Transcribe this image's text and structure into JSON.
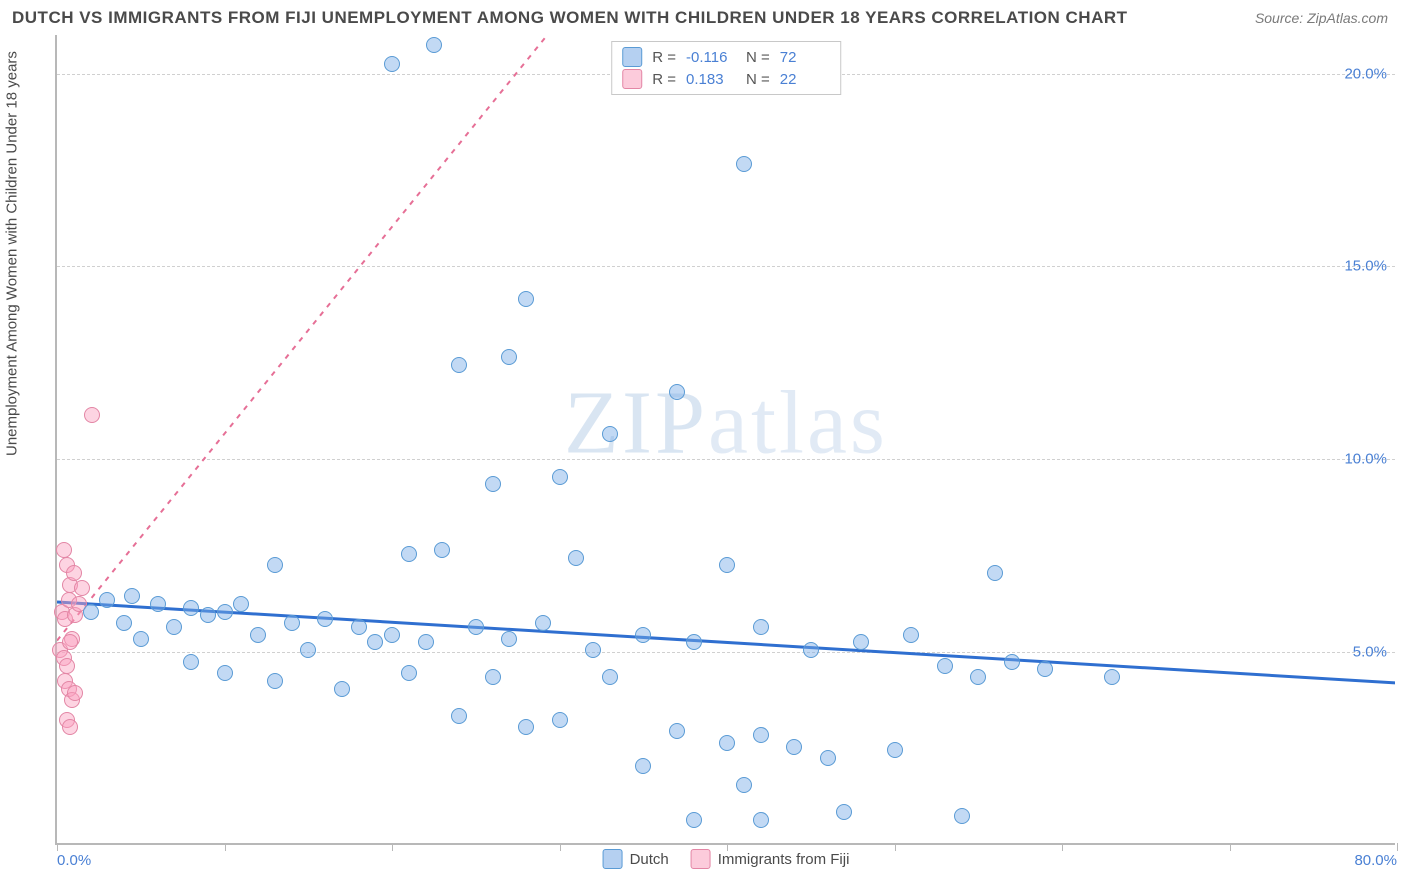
{
  "title": "DUTCH VS IMMIGRANTS FROM FIJI UNEMPLOYMENT AMONG WOMEN WITH CHILDREN UNDER 18 YEARS CORRELATION CHART",
  "source": "Source: ZipAtlas.com",
  "ylabel": "Unemployment Among Women with Children Under 18 years",
  "watermark_a": "ZIP",
  "watermark_b": "atlas",
  "chart": {
    "type": "scatter",
    "xmin": 0,
    "xmax": 80,
    "ymin": 0,
    "ymax": 21,
    "x_ticks": [
      0,
      10,
      20,
      30,
      40,
      50,
      60,
      70,
      80
    ],
    "x_tick_labels": {
      "0": "0.0%",
      "80": "80.0%"
    },
    "y_gridlines": [
      5,
      10,
      15,
      20
    ],
    "y_tick_labels": {
      "5": "5.0%",
      "10": "10.0%",
      "15": "15.0%",
      "20": "20.0%"
    },
    "background_color": "#ffffff",
    "grid_color": "#d0d0d0",
    "axis_color": "#b8b8b8",
    "tick_label_color": "#4a80d4",
    "label_fontsize": 15,
    "title_fontsize": 17,
    "marker_radius": 8
  },
  "series": {
    "dutch": {
      "label": "Dutch",
      "fill": "rgba(120,170,230,0.45)",
      "stroke": "#5a9bd5",
      "trend_color": "#2f6fd0",
      "trend_width": 3,
      "trend_dash": "none",
      "r_label": "-0.116",
      "n_label": "72",
      "trend": {
        "x1": 0,
        "y1": 6.3,
        "x2": 80,
        "y2": 4.2
      },
      "points": [
        [
          22.5,
          20.7
        ],
        [
          20,
          20.2
        ],
        [
          41,
          17.6
        ],
        [
          28,
          14.1
        ],
        [
          24,
          12.4
        ],
        [
          27,
          12.6
        ],
        [
          37,
          11.7
        ],
        [
          33,
          10.6
        ],
        [
          26,
          9.3
        ],
        [
          30,
          9.5
        ],
        [
          21,
          7.5
        ],
        [
          23,
          7.6
        ],
        [
          31,
          7.4
        ],
        [
          13,
          7.2
        ],
        [
          40,
          7.2
        ],
        [
          56,
          7.0
        ],
        [
          2,
          6.0
        ],
        [
          3,
          6.3
        ],
        [
          4,
          5.7
        ],
        [
          4.5,
          6.4
        ],
        [
          5,
          5.3
        ],
        [
          6,
          6.2
        ],
        [
          7,
          5.6
        ],
        [
          8,
          6.1
        ],
        [
          9,
          5.9
        ],
        [
          10,
          6.0
        ],
        [
          11,
          6.2
        ],
        [
          12,
          5.4
        ],
        [
          14,
          5.7
        ],
        [
          15,
          5.0
        ],
        [
          16,
          5.8
        ],
        [
          18,
          5.6
        ],
        [
          19,
          5.2
        ],
        [
          20,
          5.4
        ],
        [
          22,
          5.2
        ],
        [
          25,
          5.6
        ],
        [
          27,
          5.3
        ],
        [
          29,
          5.7
        ],
        [
          32,
          5.0
        ],
        [
          35,
          5.4
        ],
        [
          38,
          5.2
        ],
        [
          42,
          5.6
        ],
        [
          45,
          5.0
        ],
        [
          48,
          5.2
        ],
        [
          51,
          5.4
        ],
        [
          8,
          4.7
        ],
        [
          10,
          4.4
        ],
        [
          13,
          4.2
        ],
        [
          17,
          4.0
        ],
        [
          21,
          4.4
        ],
        [
          24,
          3.3
        ],
        [
          26,
          4.3
        ],
        [
          28,
          3.0
        ],
        [
          30,
          3.2
        ],
        [
          33,
          4.3
        ],
        [
          37,
          2.9
        ],
        [
          38,
          0.6
        ],
        [
          40,
          2.6
        ],
        [
          41,
          1.5
        ],
        [
          42,
          2.8
        ],
        [
          42,
          0.6
        ],
        [
          44,
          2.5
        ],
        [
          46,
          2.2
        ],
        [
          50,
          2.4
        ],
        [
          53,
          4.6
        ],
        [
          55,
          4.3
        ],
        [
          57,
          4.7
        ],
        [
          59,
          4.5
        ],
        [
          63,
          4.3
        ],
        [
          54,
          0.7
        ],
        [
          47,
          0.8
        ],
        [
          35,
          2.0
        ]
      ]
    },
    "fiji": {
      "label": "Immigrants from Fiji",
      "fill": "rgba(250,160,190,0.45)",
      "stroke": "#e386a5",
      "trend_color": "#e66f96",
      "trend_width": 2,
      "trend_dash": "5,6",
      "r_label": "0.183",
      "n_label": "22",
      "trend": {
        "x1": 0,
        "y1": 5.3,
        "x2": 33,
        "y2": 23.0
      },
      "points": [
        [
          2.1,
          11.1
        ],
        [
          0.4,
          7.6
        ],
        [
          0.6,
          7.2
        ],
        [
          0.8,
          6.7
        ],
        [
          1.0,
          7.0
        ],
        [
          0.3,
          6.0
        ],
        [
          0.5,
          5.8
        ],
        [
          0.7,
          6.3
        ],
        [
          0.9,
          5.3
        ],
        [
          1.1,
          5.9
        ],
        [
          1.3,
          6.2
        ],
        [
          1.5,
          6.6
        ],
        [
          0.2,
          5.0
        ],
        [
          0.4,
          4.8
        ],
        [
          0.6,
          4.6
        ],
        [
          0.8,
          5.2
        ],
        [
          0.5,
          4.2
        ],
        [
          0.7,
          4.0
        ],
        [
          0.9,
          3.7
        ],
        [
          1.1,
          3.9
        ],
        [
          0.6,
          3.2
        ],
        [
          0.8,
          3.0
        ]
      ]
    }
  },
  "stat_legend": {
    "r_prefix": "R =",
    "n_prefix": "N ="
  },
  "legend_swatch_blue_fill": "rgba(120,170,230,0.55)",
  "legend_swatch_blue_stroke": "#5a9bd5",
  "legend_swatch_pink_fill": "rgba(250,160,190,0.55)",
  "legend_swatch_pink_stroke": "#e386a5"
}
